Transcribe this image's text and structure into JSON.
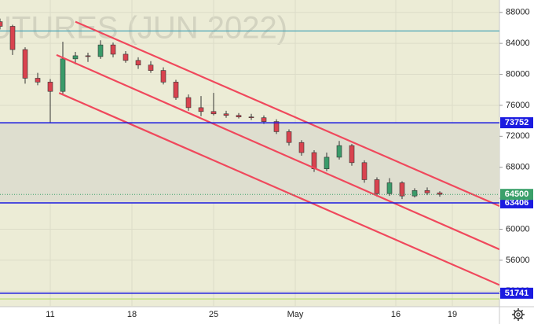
{
  "chart_data": {
    "type": "candlestick",
    "watermark": "UTURES (JUN 2022)",
    "x": [
      0,
      2,
      4,
      6,
      8,
      10,
      12,
      14,
      16,
      18,
      20,
      22,
      24,
      26,
      28,
      30,
      32,
      34,
      36,
      38,
      40,
      42,
      44,
      46,
      48,
      50,
      52,
      54,
      56,
      58,
      60,
      62,
      64,
      66,
      68,
      70
    ],
    "open": [
      86800,
      86200,
      83200,
      79500,
      79000,
      77800,
      82000,
      82400,
      82300,
      83800,
      82600,
      81800,
      81200,
      80500,
      79000,
      77000,
      75700,
      75200,
      74900,
      74700,
      74500,
      74400,
      73900,
      72600,
      71200,
      69900,
      67800,
      69300,
      70800,
      68600,
      66400,
      64600,
      66000,
      64300,
      65000,
      64700
    ],
    "high": [
      87200,
      86400,
      83500,
      80200,
      79400,
      84200,
      82900,
      82800,
      84400,
      84100,
      83000,
      82200,
      81700,
      80900,
      79300,
      77400,
      77200,
      77600,
      75300,
      75000,
      74900,
      74700,
      74200,
      72900,
      71500,
      70200,
      69900,
      71400,
      71000,
      68900,
      66700,
      66600,
      66200,
      65300,
      65400,
      64900
    ],
    "low": [
      85800,
      82500,
      78800,
      78600,
      73700,
      77300,
      81300,
      81600,
      82000,
      82200,
      81500,
      80700,
      80200,
      78700,
      76700,
      75300,
      74600,
      74700,
      74400,
      74300,
      74100,
      73600,
      72300,
      70800,
      69500,
      67400,
      67500,
      69000,
      68200,
      66000,
      64200,
      64300,
      63900,
      64100,
      64400,
      64200
    ],
    "close": [
      86200,
      83200,
      79500,
      79000,
      77800,
      82000,
      82400,
      82300,
      83800,
      82600,
      81800,
      81200,
      80500,
      79000,
      77000,
      75700,
      75200,
      74900,
      74700,
      74500,
      74400,
      73900,
      72600,
      71200,
      69900,
      67800,
      69300,
      70800,
      68600,
      66400,
      64600,
      66000,
      64300,
      65000,
      64700,
      64500
    ],
    "up_color": "#3a9b6a",
    "down_color": "#d9434f",
    "xlim": [
      0,
      79.5
    ],
    "xticks": [
      {
        "value": 8,
        "label": "11"
      },
      {
        "value": 21,
        "label": "18"
      },
      {
        "value": 34,
        "label": "25"
      },
      {
        "value": 47,
        "label": "May"
      },
      {
        "value": 63,
        "label": "16"
      },
      {
        "value": 72,
        "label": "19"
      }
    ],
    "ylim": [
      50000,
      89600
    ],
    "yticks": [
      52000,
      56000,
      60000,
      64000,
      68000,
      72000,
      76000,
      80000,
      84000,
      88000
    ],
    "levels": [
      {
        "value": 73752,
        "color": "#1b1be0"
      },
      {
        "value": 63406,
        "color": "#1b1be0"
      },
      {
        "value": 51741,
        "color": "#1b1be0"
      }
    ],
    "current_price": {
      "value": 64500,
      "color": "#3aa06a"
    },
    "reference_lines": [
      {
        "value": 85600,
        "color": "#4aa6b8"
      },
      {
        "value": 51000,
        "color": "#b9dc74"
      }
    ],
    "trend_lines": {
      "color": "#f0485c",
      "lines": [
        {
          "x": [
            12,
            79.5
          ],
          "y": [
            86800,
            63000
          ]
        },
        {
          "x": [
            9,
            79.5
          ],
          "y": [
            82500,
            57400
          ]
        },
        {
          "x": [
            9.4,
            79.5
          ],
          "y": [
            77600,
            52800
          ]
        }
      ]
    }
  }
}
